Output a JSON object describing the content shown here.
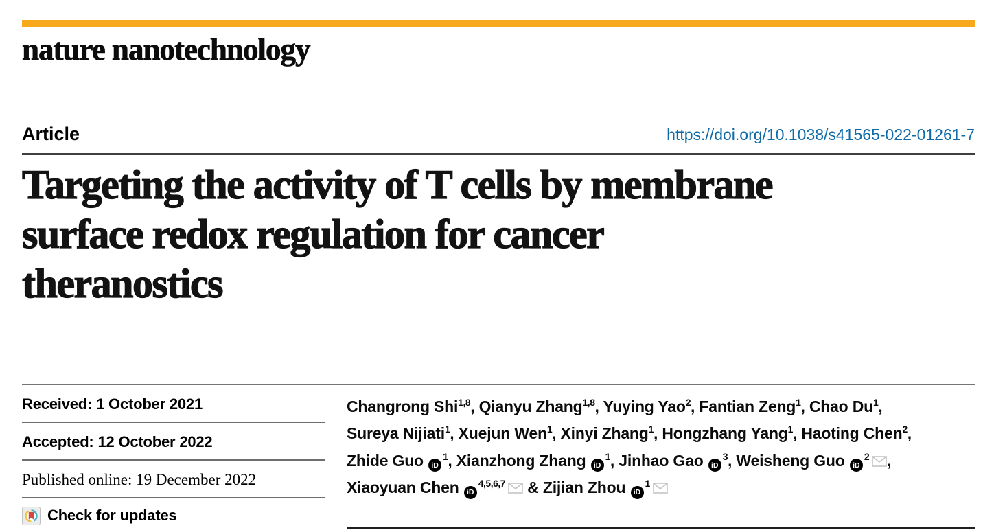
{
  "masthead": {
    "journal": "nature nanotechnology"
  },
  "brand": {
    "bar_orange": "#f7a81c",
    "link_blue": "#0e6ba8",
    "crossmark_teal": "#3db5c9",
    "crossmark_yellow": "#eec43c",
    "crossmark_red": "#d64541"
  },
  "article": {
    "label": "Article",
    "doi": "https://doi.org/10.1038/s41565-022-01261-7"
  },
  "title_lines": [
    "Targeting the activity of T cells by membrane",
    "surface redox regulation for cancer",
    "theranostics"
  ],
  "dates": {
    "received": "Received: 1 October 2021",
    "accepted": "Accepted: 12 October 2022",
    "published": "Published online: 19 December 2022"
  },
  "check_for_updates": "Check for updates",
  "icons": {
    "orcid_glyph": "iD"
  },
  "authors": {
    "lines": [
      [
        {
          "t": "Changrong Shi"
        },
        {
          "sup": "1,8"
        },
        {
          "t": ", Qianyu Zhang"
        },
        {
          "sup": "1,8"
        },
        {
          "t": ", Yuying Yao"
        },
        {
          "sup": "2"
        },
        {
          "t": ", Fantian Zeng"
        },
        {
          "sup": "1"
        },
        {
          "t": ", Chao Du"
        },
        {
          "sup": "1"
        },
        {
          "t": ","
        }
      ],
      [
        {
          "t": "Sureya Nijiati"
        },
        {
          "sup": "1"
        },
        {
          "t": ", Xuejun Wen"
        },
        {
          "sup": "1"
        },
        {
          "t": ", Xinyi Zhang"
        },
        {
          "sup": "1"
        },
        {
          "t": ", Hongzhang Yang"
        },
        {
          "sup": "1"
        },
        {
          "t": ", Haoting Chen"
        },
        {
          "sup": "2"
        },
        {
          "t": ","
        }
      ],
      [
        {
          "t": "Zhide Guo "
        },
        {
          "icon": "orcid"
        },
        {
          "sup": "1"
        },
        {
          "t": ", Xianzhong Zhang "
        },
        {
          "icon": "orcid"
        },
        {
          "sup": "1"
        },
        {
          "t": ", Jinhao Gao "
        },
        {
          "icon": "orcid"
        },
        {
          "sup": "3"
        },
        {
          "t": ", Weisheng Guo "
        },
        {
          "icon": "orcid"
        },
        {
          "sup": "2"
        },
        {
          "icon": "mail"
        },
        {
          "t": ","
        }
      ],
      [
        {
          "t": "Xiaoyuan Chen "
        },
        {
          "icon": "orcid"
        },
        {
          "sup": "4,5,6,7"
        },
        {
          "icon": "mail"
        },
        {
          "t": " & Zijian Zhou "
        },
        {
          "icon": "orcid"
        },
        {
          "sup": "1"
        },
        {
          "icon": "mail"
        }
      ]
    ]
  }
}
